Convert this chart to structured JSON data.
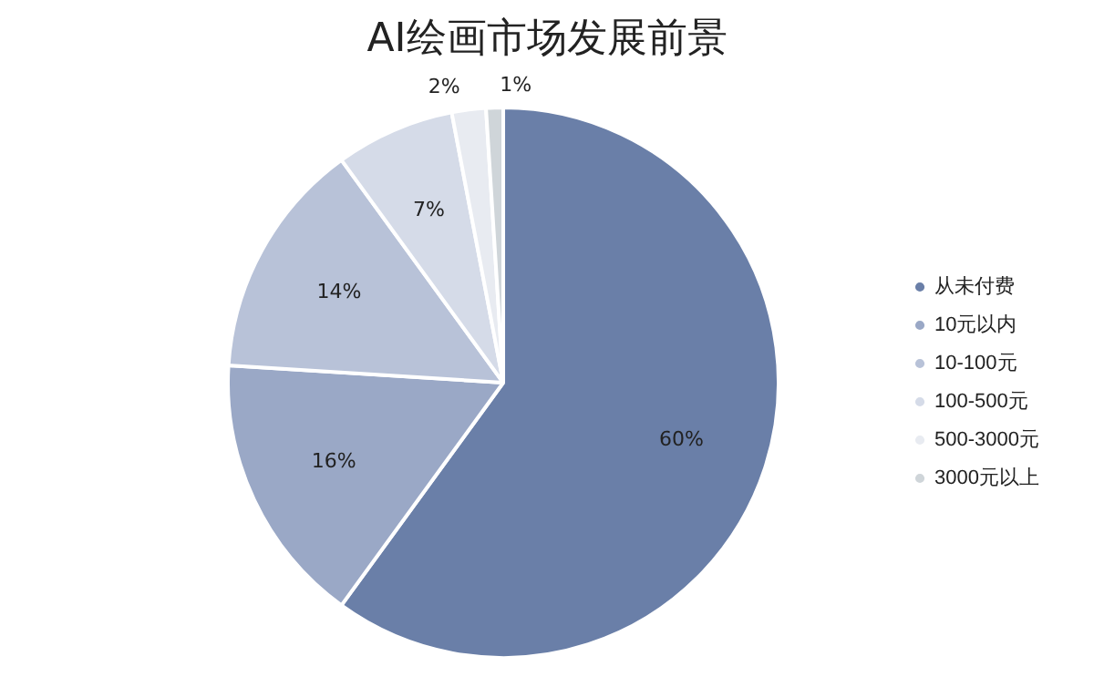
{
  "chart_data": {
    "type": "pie",
    "title": "AI绘画市场发展前景",
    "categories": [
      "从未付费",
      "10元以内",
      "10-100元",
      "100-500元",
      "500-3000元",
      "3000元以上"
    ],
    "values": [
      60,
      16,
      14,
      7,
      2,
      1
    ],
    "value_labels": [
      "60%",
      "16%",
      "14%",
      "7%",
      "2%",
      "1%"
    ],
    "colors": [
      "#6a7fa8",
      "#9aa8c6",
      "#b8c2d8",
      "#d5dbe8",
      "#e8ebf1",
      "#cfd5d9"
    ],
    "legend": "right"
  }
}
